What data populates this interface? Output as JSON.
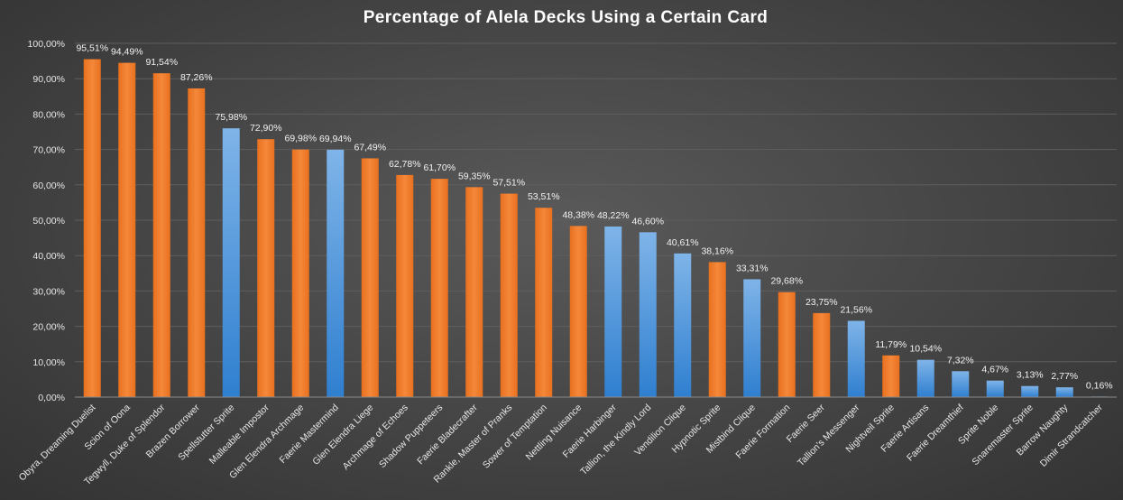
{
  "chart_data": {
    "type": "bar",
    "title": "Percentage of Alela Decks Using a Certain Card",
    "xlabel": "",
    "ylabel": "",
    "ylim": [
      0,
      100
    ],
    "yticks": [
      "0,00%",
      "10,00%",
      "20,00%",
      "30,00%",
      "40,00%",
      "50,00%",
      "60,00%",
      "70,00%",
      "80,00%",
      "90,00%",
      "100,00%"
    ],
    "grid": true,
    "legend": "none",
    "colors": {
      "orange": "#f07e2a",
      "blue": "#4a93d6"
    },
    "categories": [
      "Obyra, Dreaming Duelist",
      "Scion of Oona",
      "Tegwyll, Duke of Splendor",
      "Brazen Borrower",
      "Spellstutter Sprite",
      "Malleable Impostor",
      "Glen Elendra Archmage",
      "Faerie Mastermind",
      "Glen Elendra Liege",
      "Archmage of Echoes",
      "Shadow Puppeteers",
      "Faerie Bladecrafter",
      "Rankle, Master of Pranks",
      "Sower of Temptation",
      "Nettling Nuisance",
      "Faerie Harbinger",
      "Tallion, the Kindly Lord",
      "Vendilion Clique",
      "Hypnotic Sprite",
      "Mistbind Clique",
      "Faerie Formation",
      "Faerie Seer",
      "Tallion's Messenger",
      "Nightveil Sprite",
      "Faerie Artisans",
      "Faerie Dreamthief",
      "Sprite Noble",
      "Snaremaster Sprite",
      "Barrow Naughty",
      "Dimir Strandcatcher"
    ],
    "values": [
      95.51,
      94.49,
      91.54,
      87.26,
      75.98,
      72.9,
      69.98,
      69.94,
      67.49,
      62.78,
      61.7,
      59.35,
      57.51,
      53.51,
      48.38,
      48.22,
      46.6,
      40.61,
      38.16,
      33.31,
      29.68,
      23.75,
      21.56,
      11.79,
      10.54,
      7.32,
      4.67,
      3.13,
      2.77,
      0.16
    ],
    "value_labels": [
      "95,51%",
      "94,49%",
      "91,54%",
      "87,26%",
      "75,98%",
      "72,90%",
      "69,98%",
      "69,94%",
      "67,49%",
      "62,78%",
      "61,70%",
      "59,35%",
      "57,51%",
      "53,51%",
      "48,38%",
      "48,22%",
      "46,60%",
      "40,61%",
      "38,16%",
      "33,31%",
      "29,68%",
      "23,75%",
      "21,56%",
      "11,79%",
      "10,54%",
      "7,32%",
      "4,67%",
      "3,13%",
      "2,77%",
      "0,16%"
    ],
    "bar_colors": [
      "orange",
      "orange",
      "orange",
      "orange",
      "blue",
      "orange",
      "orange",
      "blue",
      "orange",
      "orange",
      "orange",
      "orange",
      "orange",
      "orange",
      "orange",
      "blue",
      "blue",
      "blue",
      "orange",
      "blue",
      "orange",
      "orange",
      "blue",
      "orange",
      "blue",
      "blue",
      "blue",
      "blue",
      "blue",
      "blue"
    ]
  }
}
